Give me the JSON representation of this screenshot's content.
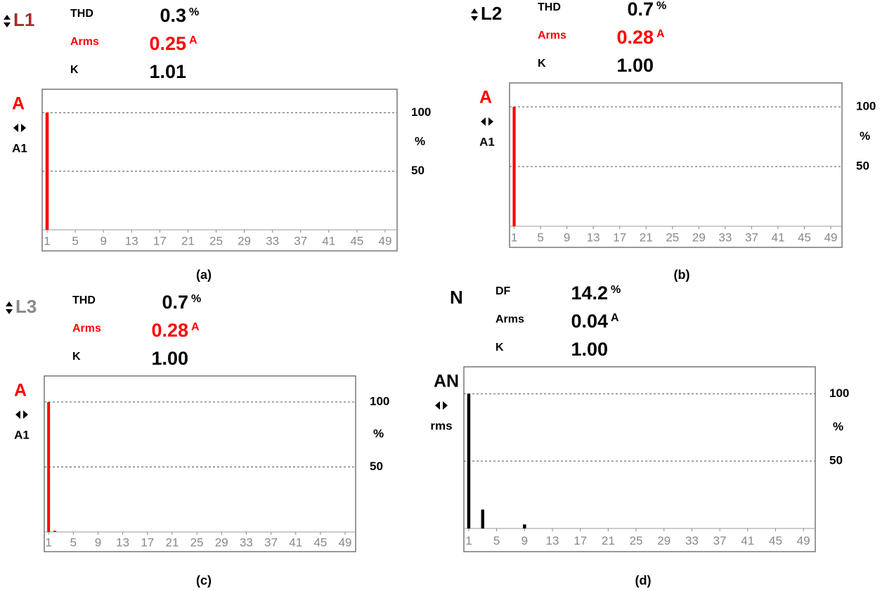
{
  "chart_data": [
    {
      "type": "bar",
      "phase": "L1",
      "phase_color": "#a52a2a",
      "readings": [
        {
          "label": "THD",
          "value": 0.3,
          "unit": "%",
          "color": "#000000"
        },
        {
          "label": "Arms",
          "value": 0.25,
          "unit": "A",
          "color": "#ff0000"
        },
        {
          "label": "K",
          "value": 1.01,
          "color": "#000000"
        }
      ],
      "ylabel": "A",
      "cursor": "A1",
      "y_unit": "%",
      "caption": "(a)",
      "x": [
        1
      ],
      "values": [
        100
      ],
      "color": "#ff0000",
      "xlim": [
        0.3,
        50.7
      ],
      "xticks": [
        1,
        5,
        9,
        13,
        17,
        21,
        25,
        29,
        33,
        37,
        41,
        45,
        49
      ],
      "ylim": [
        0,
        120
      ],
      "yticks": [
        50,
        100
      ],
      "grid": true
    },
    {
      "type": "bar",
      "phase": "L2",
      "phase_color": "#000000",
      "readings": [
        {
          "label": "THD",
          "value": 0.7,
          "unit": "%",
          "color": "#000000"
        },
        {
          "label": "Arms",
          "value": 0.28,
          "unit": "A",
          "color": "#ff0000"
        },
        {
          "label": "K",
          "value": 1,
          "value_label": "1.00",
          "color": "#000000"
        }
      ],
      "ylabel": "A",
      "cursor": "A1",
      "y_unit": "%",
      "caption": "(b)",
      "x": [
        1
      ],
      "values": [
        100
      ],
      "color": "#ff0000",
      "xlim": [
        0.3,
        50.7
      ],
      "xticks": [
        1,
        5,
        9,
        13,
        17,
        21,
        25,
        29,
        33,
        37,
        41,
        45,
        49
      ],
      "ylim": [
        0,
        120
      ],
      "yticks": [
        50,
        100
      ],
      "grid": true
    },
    {
      "type": "bar",
      "phase": "L3",
      "phase_color": "#888888",
      "readings": [
        {
          "label": "THD",
          "value": 0.7,
          "unit": "%",
          "color": "#000000"
        },
        {
          "label": "Arms",
          "value": 0.28,
          "unit": "A",
          "color": "#ff0000"
        },
        {
          "label": "K",
          "value": 1,
          "value_label": "1.00",
          "color": "#000000"
        }
      ],
      "ylabel": "A",
      "cursor": "A1",
      "y_unit": "%",
      "caption": "(c)",
      "x": [
        1,
        2
      ],
      "values": [
        100,
        1
      ],
      "color": "#ff0000",
      "xlim": [
        0.3,
        50.7
      ],
      "xticks": [
        1,
        5,
        9,
        13,
        17,
        21,
        25,
        29,
        33,
        37,
        41,
        45,
        49
      ],
      "ylim": [
        0,
        120
      ],
      "yticks": [
        50,
        100
      ],
      "grid": true
    },
    {
      "type": "bar",
      "phase": "N",
      "phase_color": "#000000",
      "readings": [
        {
          "label": "DF",
          "value": 14.2,
          "unit": "%",
          "color": "#000000"
        },
        {
          "label": "Arms",
          "value": 0.04,
          "unit": "A",
          "color": "#000000"
        },
        {
          "label": "K",
          "value": 1,
          "value_label": "1.00",
          "color": "#000000"
        }
      ],
      "ylabel": "AN",
      "cursor": "rms",
      "y_unit": "%",
      "caption": "(d)",
      "x": [
        1,
        3,
        9
      ],
      "values": [
        100,
        14,
        3
      ],
      "color": "#000000",
      "xlim": [
        0.3,
        50.7
      ],
      "xticks": [
        1,
        5,
        9,
        13,
        17,
        21,
        25,
        29,
        33,
        37,
        41,
        45,
        49
      ],
      "ylim": [
        0,
        120
      ],
      "yticks": [
        50,
        100
      ],
      "grid": true
    }
  ]
}
